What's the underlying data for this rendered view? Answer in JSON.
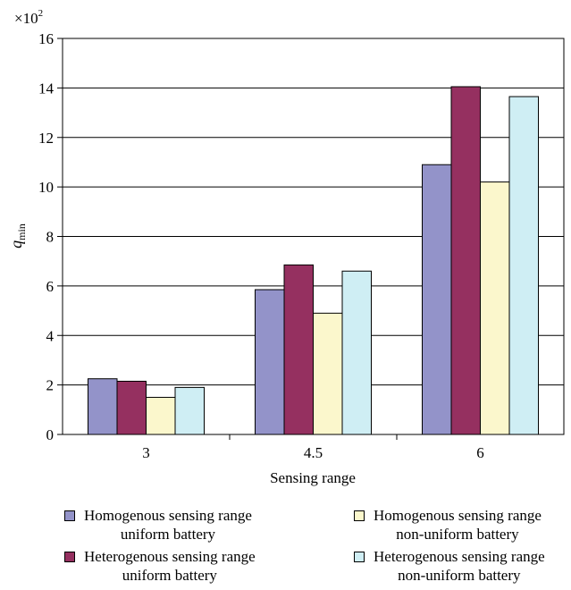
{
  "chart_data": {
    "type": "bar",
    "xlabel": "Sensing range",
    "ylabel": "q",
    "ylabel_subscript": "min",
    "multiplier": "×10",
    "multiplier_exp": "2",
    "categories": [
      "3",
      "4.5",
      "6"
    ],
    "ylim": [
      0,
      16
    ],
    "yticks": [
      "0",
      "2",
      "4",
      "6",
      "8",
      "10",
      "12",
      "14",
      "16"
    ],
    "grid": true,
    "legend_position": "bottom",
    "series": [
      {
        "name": "Homogenous sensing range\nuniform battery",
        "color": "#9393c9",
        "values": [
          2.25,
          5.85,
          10.9
        ]
      },
      {
        "name": "Heterogenous sensing range\nuniform battery",
        "color": "#953060",
        "values": [
          2.15,
          6.85,
          14.05
        ]
      },
      {
        "name": "Homogenous sensing range\nnon-uniform battery",
        "color": "#fbf7cc",
        "values": [
          1.5,
          4.9,
          10.2
        ]
      },
      {
        "name": "Heterogenous sensing range\nnon-uniform battery",
        "color": "#cfeef4",
        "values": [
          1.9,
          6.6,
          13.65
        ]
      }
    ]
  }
}
